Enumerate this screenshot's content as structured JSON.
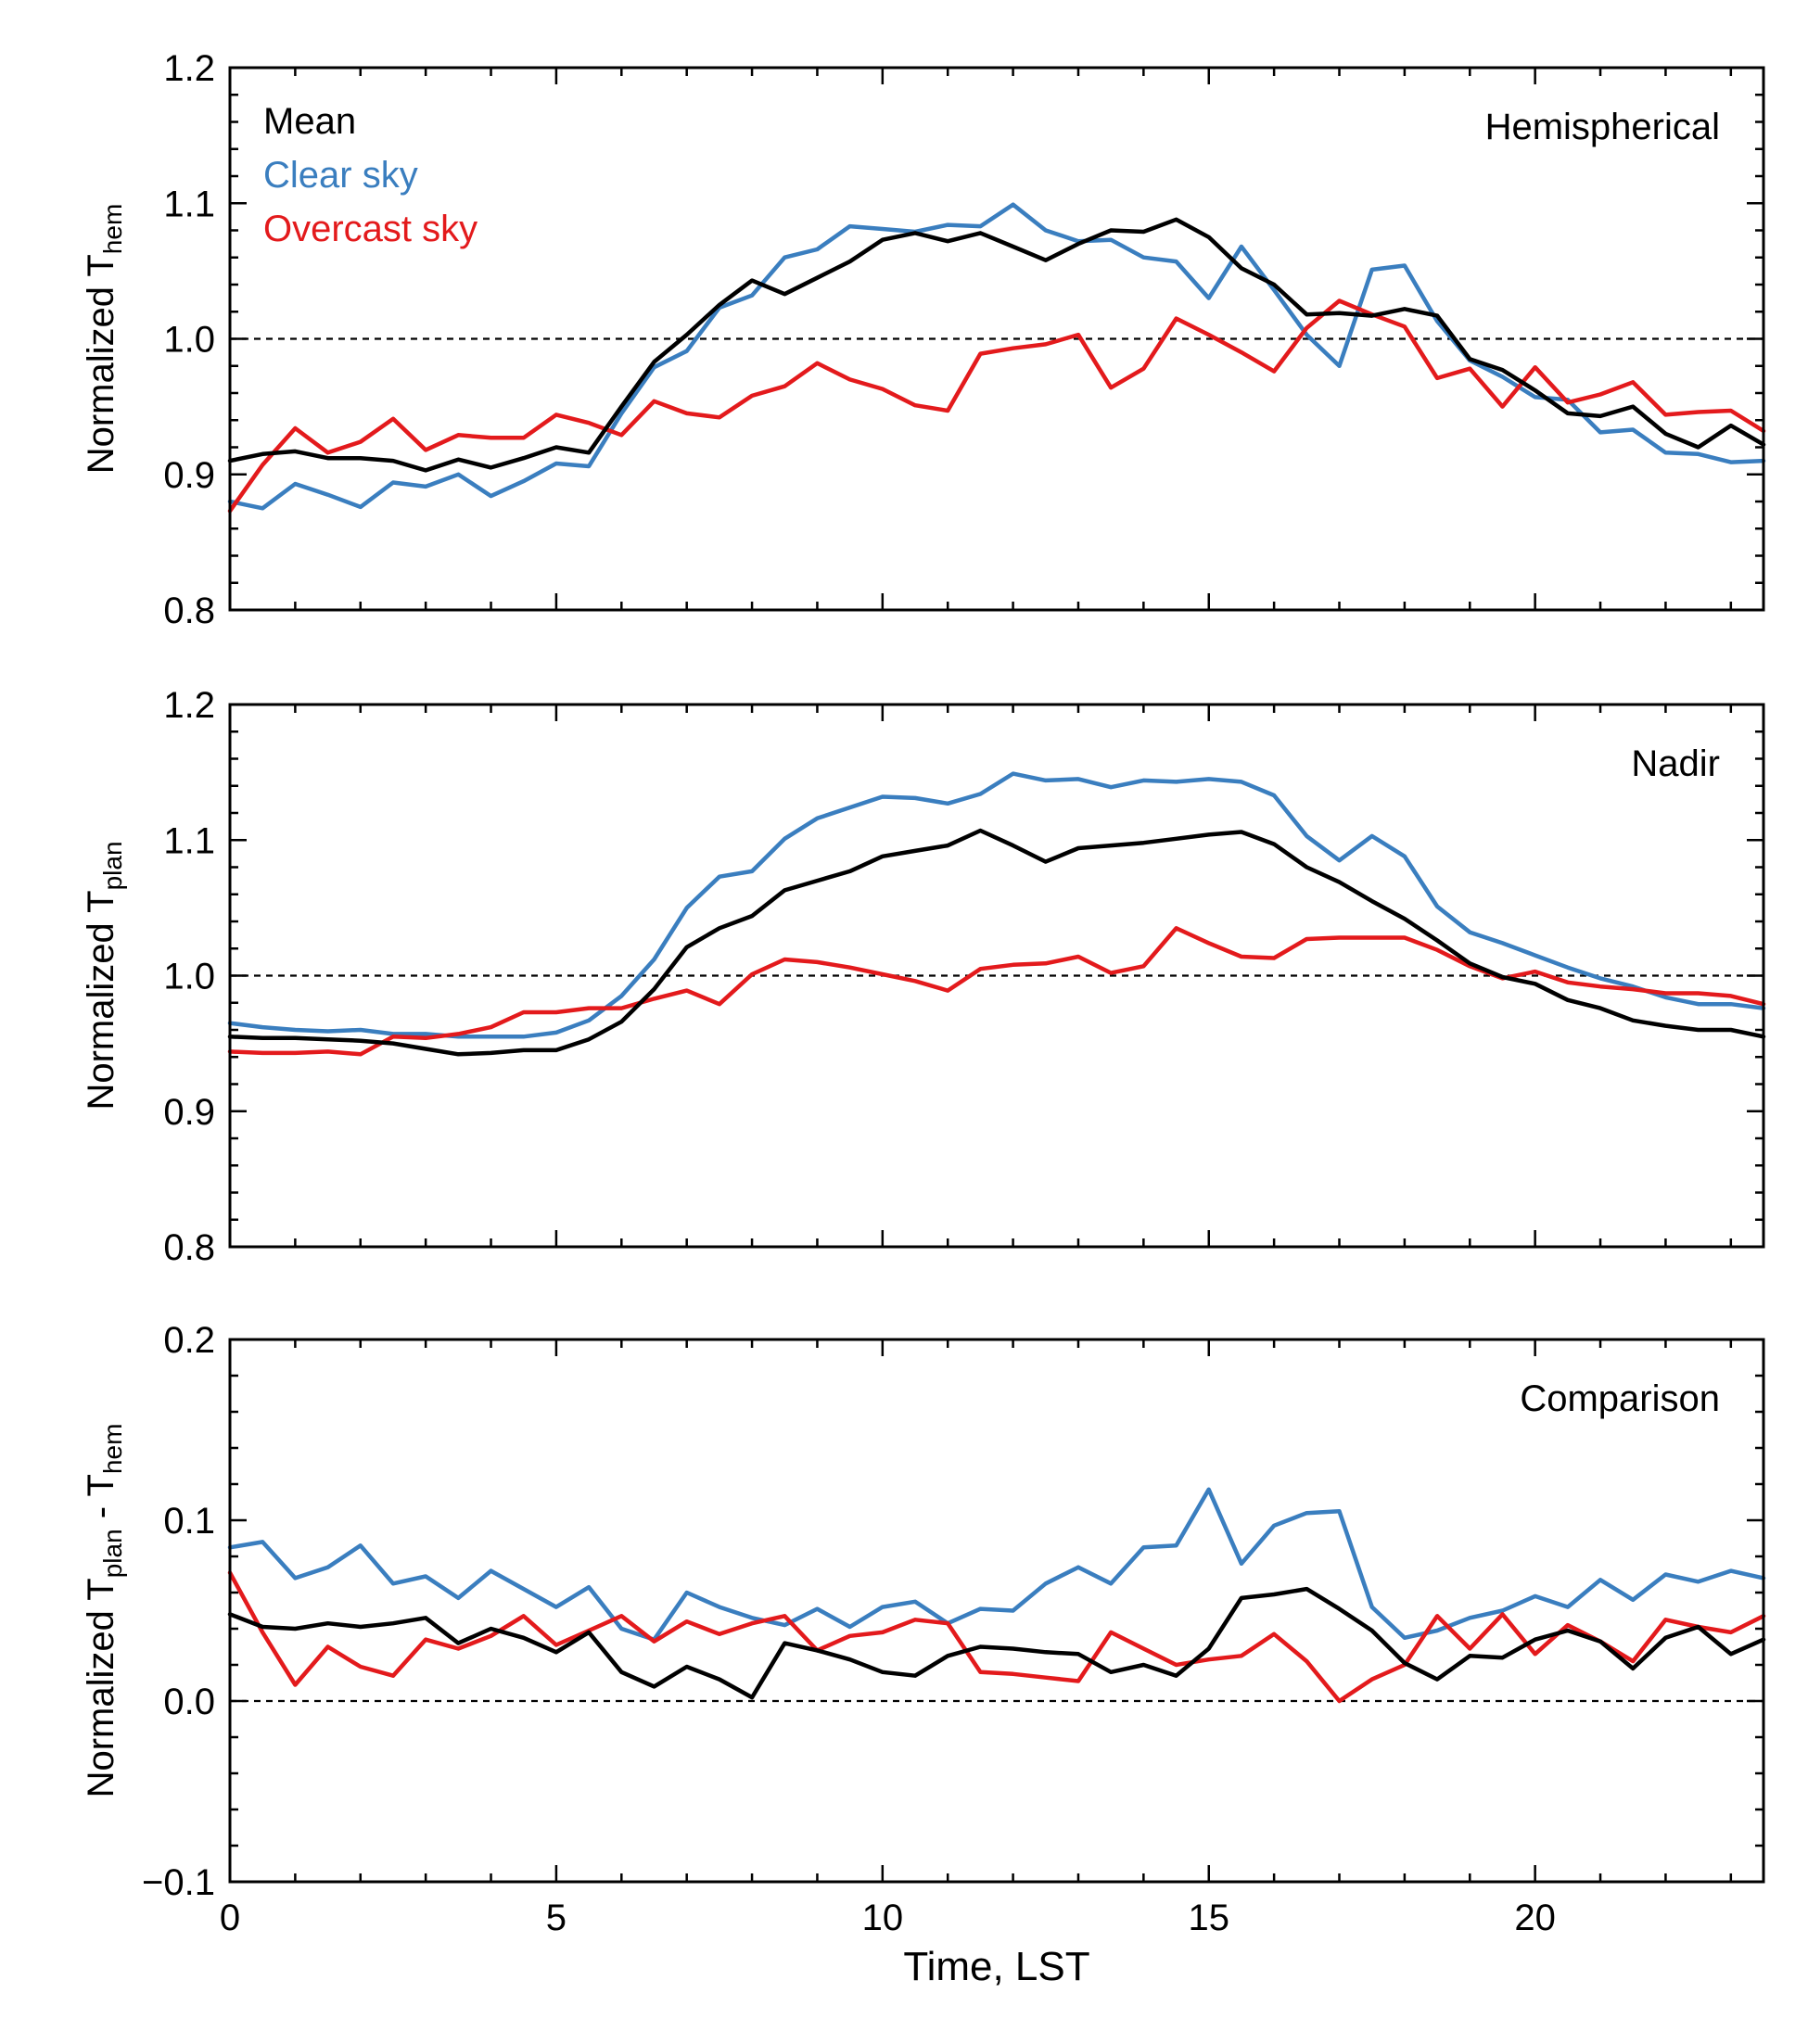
{
  "figure": {
    "xlabel": "Time, LST"
  },
  "colors": {
    "mean": "#000000",
    "clear": "#3a7ebf",
    "overcast": "#e31a1c"
  },
  "legend": {
    "placement": "top-left",
    "mean": "Mean",
    "clear": "Clear sky",
    "overcast": "Overcast sky"
  },
  "chart_data": [
    {
      "type": "line",
      "panel_label": "Hemispherical",
      "ylabel": {
        "prefix": "Normalized T",
        "sub1": "hem"
      },
      "xlim": [
        0,
        23.5
      ],
      "ylim": [
        0.8,
        1.2
      ],
      "xticks": [
        0,
        5,
        10,
        15,
        20
      ],
      "yticks": [
        0.8,
        0.9,
        1.0,
        1.1,
        1.2
      ],
      "ytick_labels": [
        "0.8",
        "0.9",
        "1.0",
        "1.1",
        "1.2"
      ],
      "reference_line": 1.0,
      "x": [
        0,
        0.5,
        1,
        1.5,
        2,
        2.5,
        3,
        3.5,
        4,
        4.5,
        5,
        5.5,
        6,
        6.5,
        7,
        7.5,
        8,
        8.5,
        9,
        9.5,
        10,
        10.5,
        11,
        11.5,
        12,
        12.5,
        13,
        13.5,
        14,
        14.5,
        15,
        15.5,
        16,
        16.5,
        17,
        17.5,
        18,
        18.5,
        19,
        19.5,
        20,
        20.5,
        21,
        21.5,
        22,
        22.5,
        23,
        23.5
      ],
      "series": [
        {
          "key": "mean",
          "values": [
            0.91,
            0.915,
            0.917,
            0.912,
            0.912,
            0.91,
            0.903,
            0.911,
            0.905,
            0.912,
            0.92,
            0.916,
            0.95,
            0.983,
            1.003,
            1.025,
            1.043,
            1.033,
            1.045,
            1.057,
            1.073,
            1.078,
            1.072,
            1.078,
            1.068,
            1.058,
            1.07,
            1.08,
            1.079,
            1.088,
            1.075,
            1.052,
            1.04,
            1.018,
            1.019,
            1.017,
            1.022,
            1.017,
            0.985,
            0.977,
            0.962,
            0.945,
            0.943,
            0.95,
            0.93,
            0.92,
            0.936,
            0.922
          ]
        },
        {
          "key": "clear",
          "values": [
            0.88,
            0.875,
            0.893,
            0.885,
            0.876,
            0.894,
            0.891,
            0.9,
            0.884,
            0.895,
            0.908,
            0.906,
            0.945,
            0.979,
            0.991,
            1.023,
            1.032,
            1.06,
            1.066,
            1.083,
            1.081,
            1.079,
            1.084,
            1.083,
            1.099,
            1.08,
            1.072,
            1.073,
            1.06,
            1.057,
            1.03,
            1.068,
            1.036,
            1.003,
            0.98,
            1.051,
            1.054,
            1.013,
            0.984,
            0.972,
            0.957,
            0.955,
            0.931,
            0.933,
            0.916,
            0.915,
            0.909,
            0.91
          ]
        },
        {
          "key": "overcast",
          "values": [
            0.873,
            0.907,
            0.934,
            0.916,
            0.924,
            0.941,
            0.918,
            0.929,
            0.927,
            0.927,
            0.944,
            0.938,
            0.929,
            0.954,
            0.945,
            0.942,
            0.958,
            0.965,
            0.982,
            0.97,
            0.963,
            0.951,
            0.947,
            0.989,
            0.993,
            0.996,
            1.003,
            0.964,
            0.978,
            1.015,
            1.003,
            0.99,
            0.976,
            1.008,
            1.028,
            1.018,
            1.009,
            0.971,
            0.978,
            0.95,
            0.979,
            0.953,
            0.959,
            0.968,
            0.944,
            0.946,
            0.947,
            0.932
          ]
        }
      ]
    },
    {
      "type": "line",
      "panel_label": "Nadir",
      "ylabel": {
        "prefix": "Normalized T",
        "sub1": "plan"
      },
      "xlim": [
        0,
        23.5
      ],
      "ylim": [
        0.8,
        1.2
      ],
      "xticks": [
        0,
        5,
        10,
        15,
        20
      ],
      "yticks": [
        0.8,
        0.9,
        1.0,
        1.1,
        1.2
      ],
      "ytick_labels": [
        "0.8",
        "0.9",
        "1.0",
        "1.1",
        "1.2"
      ],
      "reference_line": 1.0,
      "x": [
        0,
        0.5,
        1,
        1.5,
        2,
        2.5,
        3,
        3.5,
        4,
        4.5,
        5,
        5.5,
        6,
        6.5,
        7,
        7.5,
        8,
        8.5,
        9,
        9.5,
        10,
        10.5,
        11,
        11.5,
        12,
        12.5,
        13,
        13.5,
        14,
        14.5,
        15,
        15.5,
        16,
        16.5,
        17,
        17.5,
        18,
        18.5,
        19,
        19.5,
        20,
        20.5,
        21,
        21.5,
        22,
        22.5,
        23,
        23.5
      ],
      "series": [
        {
          "key": "mean",
          "values": [
            0.955,
            0.954,
            0.954,
            0.953,
            0.952,
            0.95,
            0.946,
            0.942,
            0.943,
            0.945,
            0.945,
            0.953,
            0.966,
            0.99,
            1.021,
            1.035,
            1.044,
            1.063,
            1.07,
            1.077,
            1.088,
            1.092,
            1.096,
            1.107,
            1.096,
            1.084,
            1.094,
            1.096,
            1.098,
            1.101,
            1.104,
            1.106,
            1.097,
            1.08,
            1.069,
            1.055,
            1.042,
            1.026,
            1.009,
            0.999,
            0.994,
            0.982,
            0.976,
            0.967,
            0.963,
            0.96,
            0.96,
            0.955
          ]
        },
        {
          "key": "clear",
          "values": [
            0.965,
            0.962,
            0.96,
            0.959,
            0.96,
            0.957,
            0.957,
            0.955,
            0.955,
            0.955,
            0.958,
            0.967,
            0.985,
            1.012,
            1.05,
            1.073,
            1.077,
            1.101,
            1.116,
            1.124,
            1.132,
            1.131,
            1.127,
            1.134,
            1.149,
            1.144,
            1.145,
            1.139,
            1.144,
            1.143,
            1.145,
            1.143,
            1.133,
            1.103,
            1.085,
            1.103,
            1.088,
            1.051,
            1.032,
            1.024,
            1.015,
            1.006,
            0.998,
            0.992,
            0.984,
            0.979,
            0.979,
            0.976
          ]
        },
        {
          "key": "overcast",
          "values": [
            0.944,
            0.943,
            0.943,
            0.944,
            0.942,
            0.955,
            0.954,
            0.957,
            0.962,
            0.973,
            0.973,
            0.976,
            0.976,
            0.983,
            0.989,
            0.979,
            1.001,
            1.012,
            1.01,
            1.006,
            1.001,
            0.996,
            0.989,
            1.005,
            1.008,
            1.009,
            1.014,
            1.002,
            1.007,
            1.035,
            1.024,
            1.014,
            1.013,
            1.027,
            1.028,
            1.028,
            1.028,
            1.019,
            1.007,
            0.998,
            1.003,
            0.995,
            0.992,
            0.99,
            0.987,
            0.987,
            0.985,
            0.979
          ]
        }
      ]
    },
    {
      "type": "line",
      "panel_label": "Comparison",
      "ylabel": {
        "prefix": "Normalized T",
        "sub1": "plan",
        "mid": " - T",
        "sub2": "hem"
      },
      "xlim": [
        0,
        23.5
      ],
      "ylim": [
        -0.1,
        0.2
      ],
      "xticks": [
        0,
        5,
        10,
        15,
        20
      ],
      "yticks": [
        -0.1,
        0.0,
        0.1,
        0.2
      ],
      "ytick_labels": [
        "−0.1",
        "0.0",
        "0.1",
        "0.2"
      ],
      "xtick_labels": [
        "0",
        "5",
        "10",
        "15",
        "20"
      ],
      "reference_line": 0.0,
      "x": [
        0,
        0.5,
        1,
        1.5,
        2,
        2.5,
        3,
        3.5,
        4,
        4.5,
        5,
        5.5,
        6,
        6.5,
        7,
        7.5,
        8,
        8.5,
        9,
        9.5,
        10,
        10.5,
        11,
        11.5,
        12,
        12.5,
        13,
        13.5,
        14,
        14.5,
        15,
        15.5,
        16,
        16.5,
        17,
        17.5,
        18,
        18.5,
        19,
        19.5,
        20,
        20.5,
        21,
        21.5,
        22,
        22.5,
        23,
        23.5
      ],
      "series": [
        {
          "key": "mean",
          "values": [
            0.048,
            0.041,
            0.04,
            0.043,
            0.041,
            0.043,
            0.046,
            0.032,
            0.04,
            0.035,
            0.027,
            0.038,
            0.016,
            0.008,
            0.019,
            0.012,
            0.002,
            0.032,
            0.028,
            0.023,
            0.016,
            0.014,
            0.025,
            0.03,
            0.029,
            0.027,
            0.026,
            0.016,
            0.02,
            0.014,
            0.029,
            0.057,
            0.059,
            0.062,
            0.051,
            0.039,
            0.021,
            0.012,
            0.025,
            0.024,
            0.034,
            0.039,
            0.033,
            0.018,
            0.035,
            0.041,
            0.026,
            0.034
          ]
        },
        {
          "key": "clear",
          "values": [
            0.085,
            0.088,
            0.068,
            0.074,
            0.086,
            0.065,
            0.069,
            0.057,
            0.072,
            0.062,
            0.052,
            0.063,
            0.04,
            0.034,
            0.06,
            0.052,
            0.046,
            0.042,
            0.051,
            0.041,
            0.052,
            0.055,
            0.043,
            0.051,
            0.05,
            0.065,
            0.074,
            0.065,
            0.085,
            0.086,
            0.117,
            0.076,
            0.097,
            0.104,
            0.105,
            0.052,
            0.035,
            0.039,
            0.046,
            0.05,
            0.058,
            0.052,
            0.067,
            0.056,
            0.07,
            0.066,
            0.072,
            0.068
          ]
        },
        {
          "key": "overcast",
          "values": [
            0.071,
            0.038,
            0.009,
            0.03,
            0.019,
            0.014,
            0.034,
            0.029,
            0.036,
            0.047,
            0.031,
            0.039,
            0.047,
            0.033,
            0.044,
            0.037,
            0.043,
            0.047,
            0.028,
            0.036,
            0.038,
            0.045,
            0.043,
            0.016,
            0.015,
            0.013,
            0.011,
            0.038,
            0.029,
            0.02,
            0.023,
            0.025,
            0.037,
            0.022,
            0.0,
            0.012,
            0.02,
            0.047,
            0.029,
            0.048,
            0.026,
            0.042,
            0.033,
            0.022,
            0.045,
            0.041,
            0.038,
            0.047
          ]
        }
      ]
    }
  ]
}
